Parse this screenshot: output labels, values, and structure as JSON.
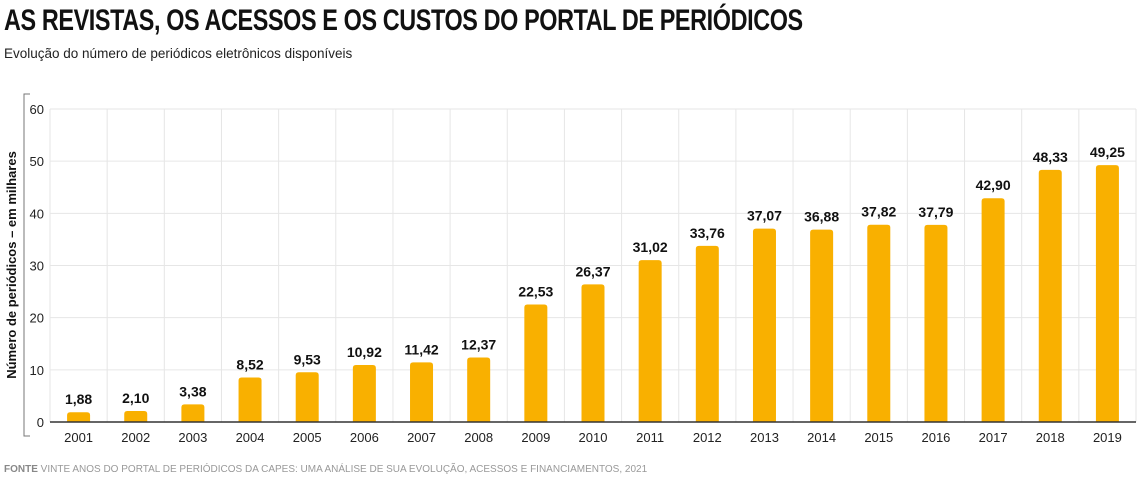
{
  "header": {
    "title": "AS REVISTAS, OS ACESSOS E OS CUSTOS DO PORTAL DE PERIÓDICOS",
    "subtitle": "Evolução do número de periódicos eletrônicos disponíveis"
  },
  "source": {
    "label": "FONTE",
    "text": "VINTE ANOS DO PORTAL DE PERIÓDICOS DA CAPES: UMA ANÁLISE DE SUA EVOLUÇÃO, ACESSOS E FINANCIAMENTOS, 2021"
  },
  "colors": {
    "bar": "#F9B000",
    "grid": "#e6e6e6"
  },
  "chart_data": {
    "type": "bar",
    "categories": [
      "2001",
      "2002",
      "2003",
      "2004",
      "2005",
      "2006",
      "2007",
      "2008",
      "2009",
      "2010",
      "2011",
      "2012",
      "2013",
      "2014",
      "2015",
      "2016",
      "2017",
      "2018",
      "2019"
    ],
    "values": [
      1.88,
      2.1,
      3.38,
      8.52,
      9.53,
      10.92,
      11.42,
      12.37,
      22.53,
      26.37,
      31.02,
      33.76,
      37.07,
      36.88,
      37.82,
      37.79,
      42.9,
      48.33,
      49.25
    ],
    "data_labels": [
      "1,88",
      "2,10",
      "3,38",
      "8,52",
      "9,53",
      "10,92",
      "11,42",
      "12,37",
      "22,53",
      "26,37",
      "31,02",
      "33,76",
      "37,07",
      "36,88",
      "37,82",
      "37,79",
      "42,90",
      "48,33",
      "49,25"
    ],
    "ylabel": "Número de periódicos – em milhares",
    "xlabel": "",
    "ylim": [
      0,
      60
    ],
    "yticks": [
      0,
      10,
      20,
      30,
      40,
      50,
      60
    ],
    "grid": true,
    "legend": "none"
  }
}
